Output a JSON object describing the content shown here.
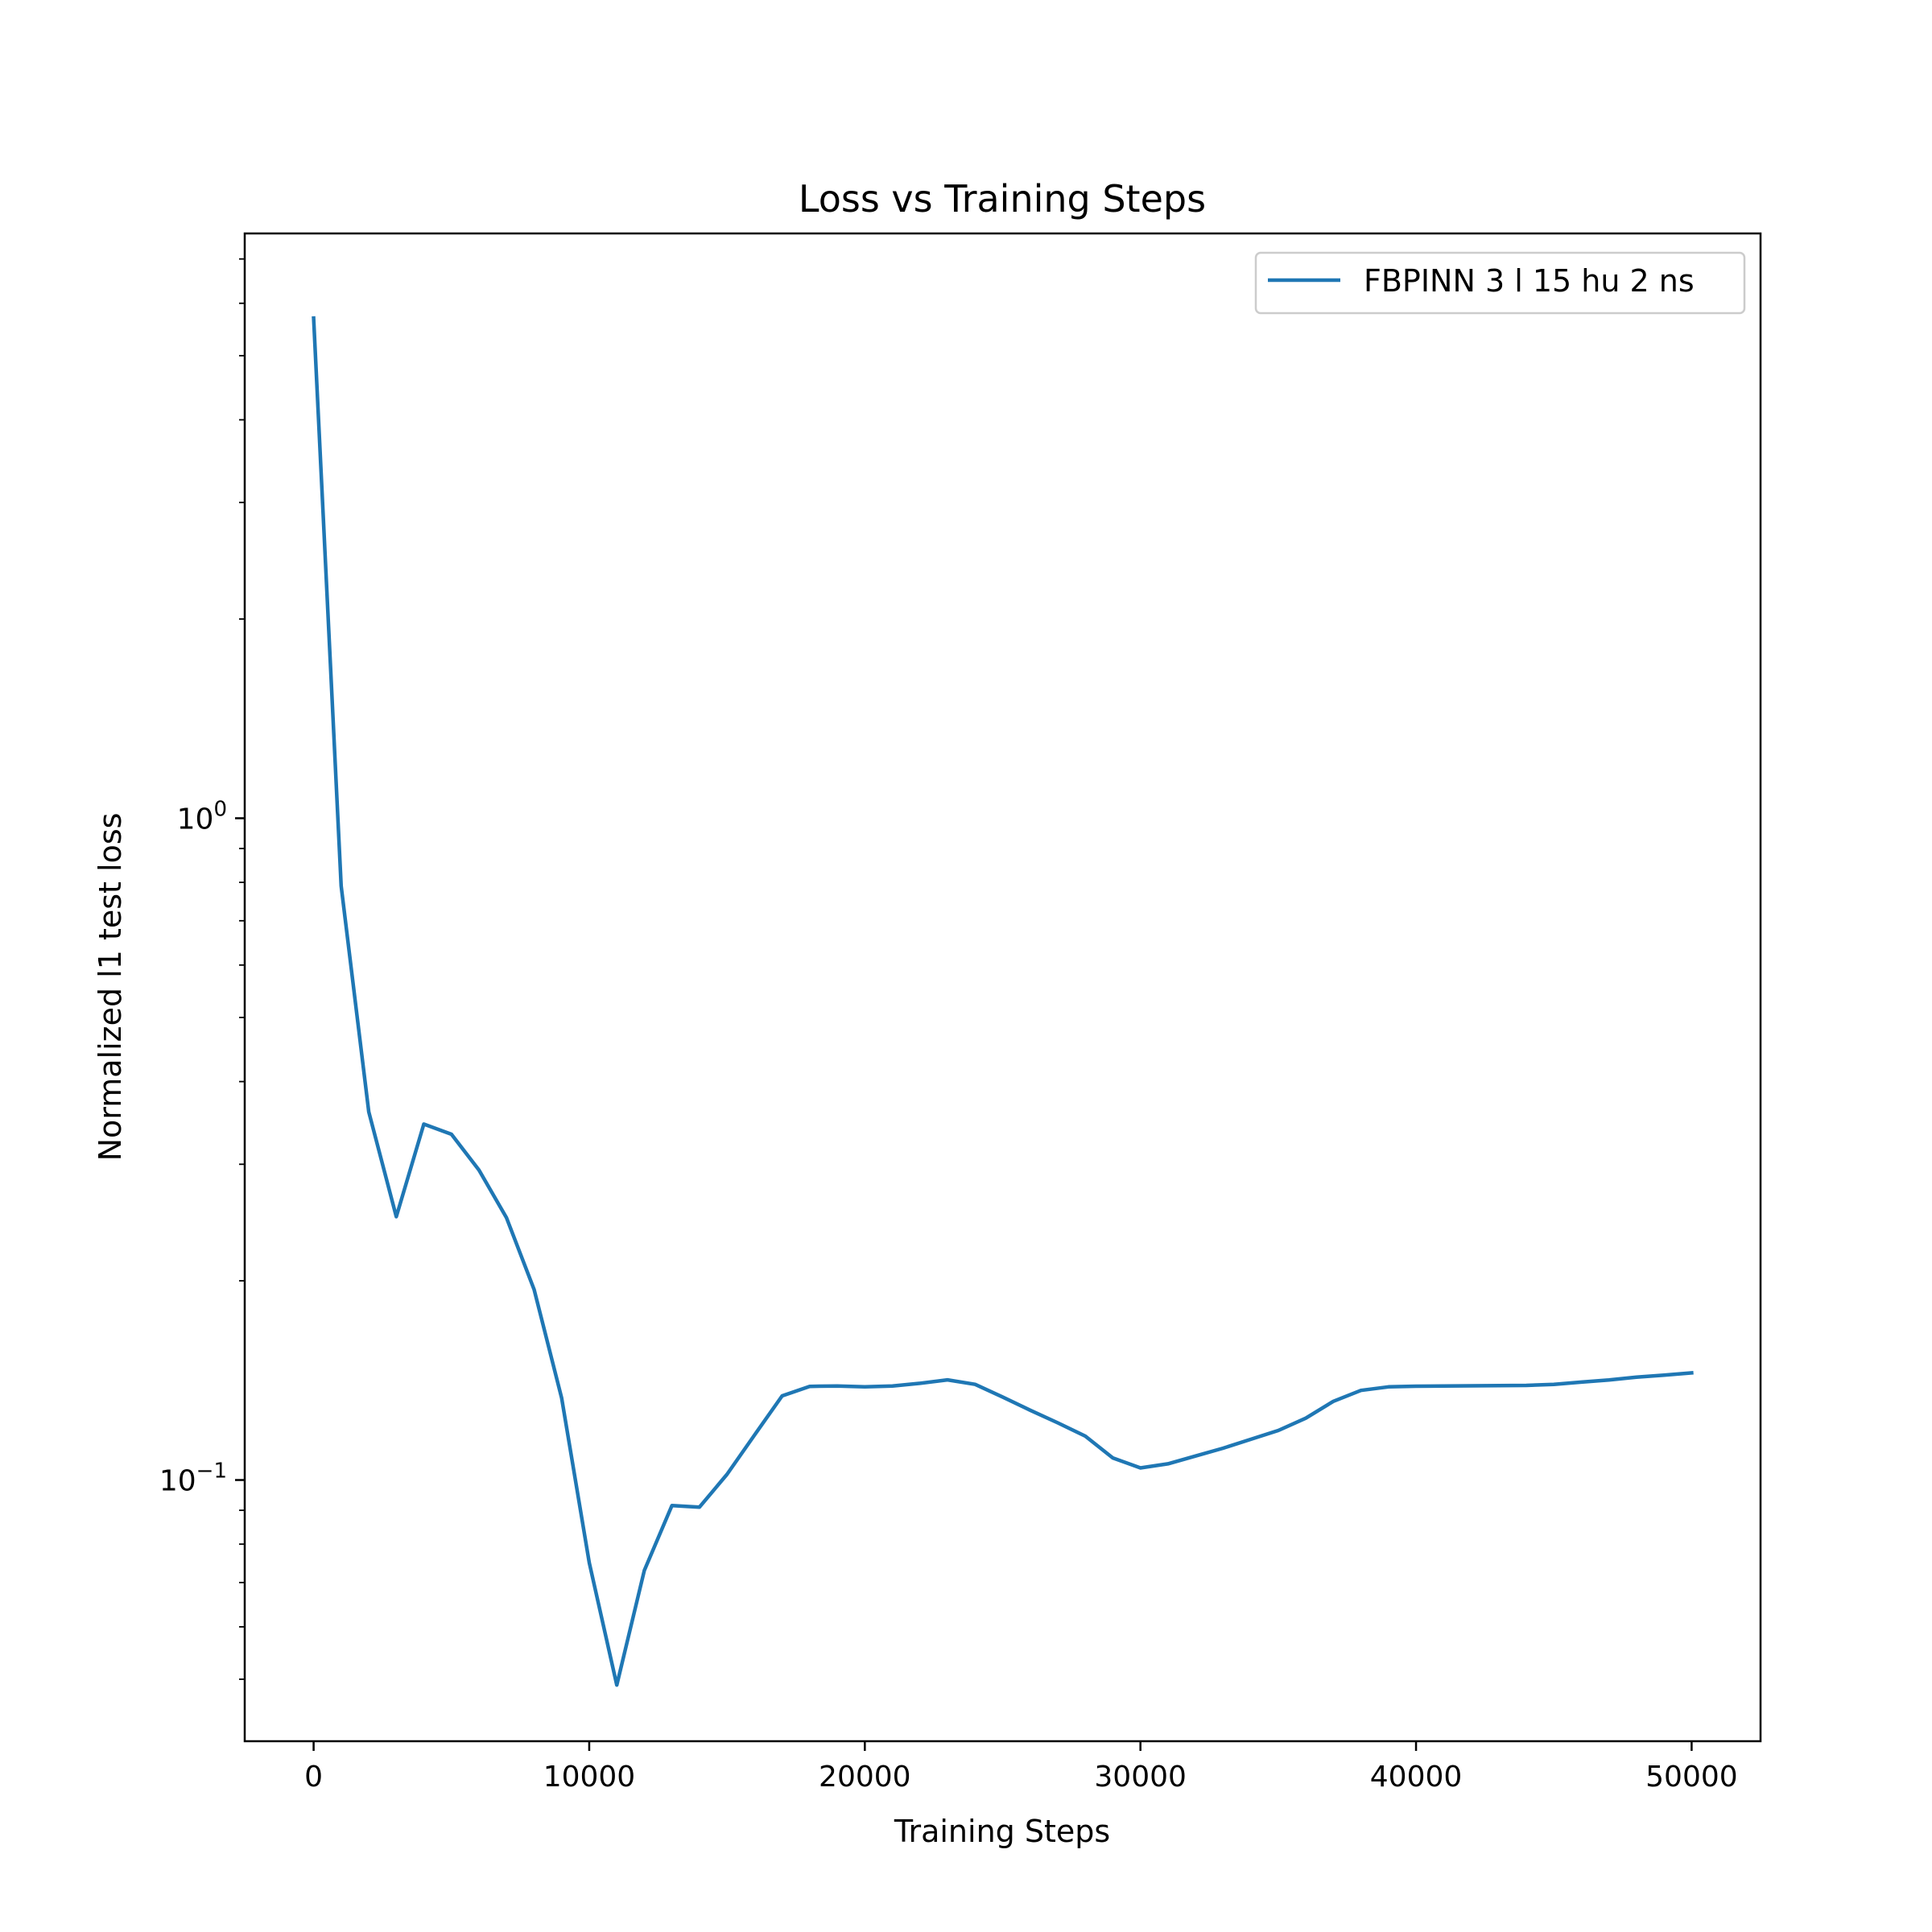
{
  "chart_data": {
    "type": "line",
    "title": "Loss vs Training Steps",
    "xlabel": "Training Steps",
    "ylabel": "Normalized l1 test loss",
    "yscale": "log",
    "xlim": [
      -2500,
      52500
    ],
    "ylim": [
      0.0403,
      7.65
    ],
    "xticks": [
      0,
      10000,
      20000,
      30000,
      40000,
      50000
    ],
    "xtick_labels": [
      "0",
      "10000",
      "20000",
      "30000",
      "40000",
      "50000"
    ],
    "yticks": [
      {
        "value": 1,
        "base": "10",
        "exp": "0"
      },
      {
        "value": 0.1,
        "base": "10",
        "exp": "−1"
      }
    ],
    "legend": {
      "placement": "top-right"
    },
    "grid": false,
    "series": [
      {
        "name": "FBPINN 3 l 15 hu 2 ns",
        "color": "#1f77b4",
        "x": [
          0,
          1000,
          2000,
          3000,
          4000,
          5000,
          6000,
          7000,
          8000,
          9000,
          10000,
          11000,
          12000,
          13000,
          14000,
          15000,
          16000,
          17000,
          18000,
          19000,
          20000,
          21000,
          22000,
          23000,
          24000,
          25000,
          26000,
          27000,
          28000,
          29000,
          30000,
          31000,
          32000,
          33000,
          34000,
          35000,
          36000,
          37000,
          38000,
          39000,
          40000,
          41000,
          42000,
          43000,
          44000,
          45000,
          46000,
          47000,
          48000,
          49000,
          50000
        ],
        "y": [
          5.7,
          0.79,
          0.36,
          0.25,
          0.345,
          0.333,
          0.294,
          0.249,
          0.194,
          0.133,
          0.075,
          0.049,
          0.073,
          0.0915,
          0.091,
          0.102,
          0.117,
          0.134,
          0.1385,
          0.1387,
          0.1383,
          0.1387,
          0.14,
          0.1417,
          0.1395,
          0.1335,
          0.1275,
          0.122,
          0.1165,
          0.108,
          0.1043,
          0.1058,
          0.1087,
          0.1117,
          0.1152,
          0.1188,
          0.124,
          0.1315,
          0.1366,
          0.1383,
          0.1386,
          0.1387,
          0.1388,
          0.1389,
          0.139,
          0.1395,
          0.1406,
          0.1416,
          0.143,
          0.144,
          0.1452
        ]
      }
    ]
  }
}
